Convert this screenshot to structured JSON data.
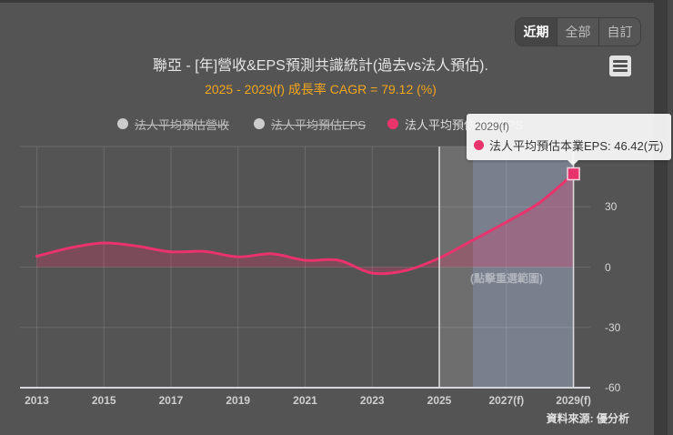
{
  "range_buttons": {
    "items": [
      {
        "label": "近期",
        "selected": true
      },
      {
        "label": "全部",
        "selected": false
      },
      {
        "label": "自訂",
        "selected": false
      }
    ]
  },
  "menu": {
    "icon": "hamburger-menu-icon"
  },
  "chart": {
    "title": "聯亞 - [年]營收&EPS預測共識統計(過去vs法人預估).",
    "subtitle": "2025 - 2029(f) 成長率 CAGR = 79.12 (%)",
    "reset_hint": "(點擊重選範圍)",
    "credits": "資料來源: 優分析"
  },
  "legend": {
    "items": [
      {
        "label": "法人平均預估營收",
        "color": "#cccccc",
        "visible": false
      },
      {
        "label": "法人平均預估EPS",
        "color": "#cccccc",
        "visible": false
      },
      {
        "label": "法人平均預估本業EPS",
        "color": "#e8336d",
        "visible": true
      }
    ]
  },
  "tooltip": {
    "header": "2029(f)",
    "text": "法人平均預估本業EPS: 46.42(元)",
    "series": "法人平均預估本業EPS",
    "value": "46.42",
    "unit": "(元)",
    "color": "#e8336d"
  },
  "chart_data": {
    "type": "area",
    "title": "聯亞 - [年]營收&EPS預測共識統計(過去vs法人預估).",
    "subtitle": "2025 - 2029(f) 成長率 CAGR = 79.12 (%)",
    "xlabel": "",
    "ylabel": "",
    "categories": [
      "2013",
      "2014",
      "2015",
      "2016",
      "2017",
      "2018",
      "2019",
      "2020",
      "2021",
      "2022",
      "2023",
      "2024",
      "2025",
      "2026(f)",
      "2027(f)",
      "2028(f)",
      "2029(f)"
    ],
    "series": [
      {
        "name": "法人平均預估本業EPS",
        "color": "#e8336d",
        "values": [
          5.4,
          9.6,
          12.0,
          10.4,
          7.6,
          7.8,
          5.1,
          6.6,
          3.4,
          3.4,
          -3.0,
          -1.7,
          4.5,
          13.4,
          22.4,
          32.2,
          46.42
        ]
      }
    ],
    "x_ticks": [
      {
        "index": 0,
        "label": "2013"
      },
      {
        "index": 2,
        "label": "2015"
      },
      {
        "index": 4,
        "label": "2017"
      },
      {
        "index": 6,
        "label": "2019"
      },
      {
        "index": 8,
        "label": "2021"
      },
      {
        "index": 10,
        "label": "2023"
      },
      {
        "index": 12,
        "label": "2025"
      },
      {
        "index": 14,
        "label": "2027(f)"
      },
      {
        "index": 16,
        "label": "2029(f)"
      }
    ],
    "y_ticks": [
      {
        "value": 30,
        "label": "30"
      },
      {
        "value": 0,
        "label": "0"
      },
      {
        "value": -30,
        "label": "-30"
      },
      {
        "value": -60,
        "label": "-60"
      }
    ],
    "y_grid": [
      60,
      30,
      0,
      -30
    ],
    "ylim": [
      -60,
      60
    ],
    "y_axis_position": "right",
    "grid": true,
    "legend_position": "top",
    "plot_bands": [
      {
        "from_index": 12,
        "to_index": 13,
        "color": "#6e6e6e"
      },
      {
        "from_index": 13,
        "to_index": 16,
        "color": "#7a7f8e"
      }
    ],
    "selection": {
      "from_index": 12,
      "to_index": 16,
      "edge_color": "#d8d8d8"
    },
    "highlighted_point": {
      "index": 16,
      "label": "2029(f)",
      "value": 46.42
    },
    "cagr_percent": 79.12
  }
}
